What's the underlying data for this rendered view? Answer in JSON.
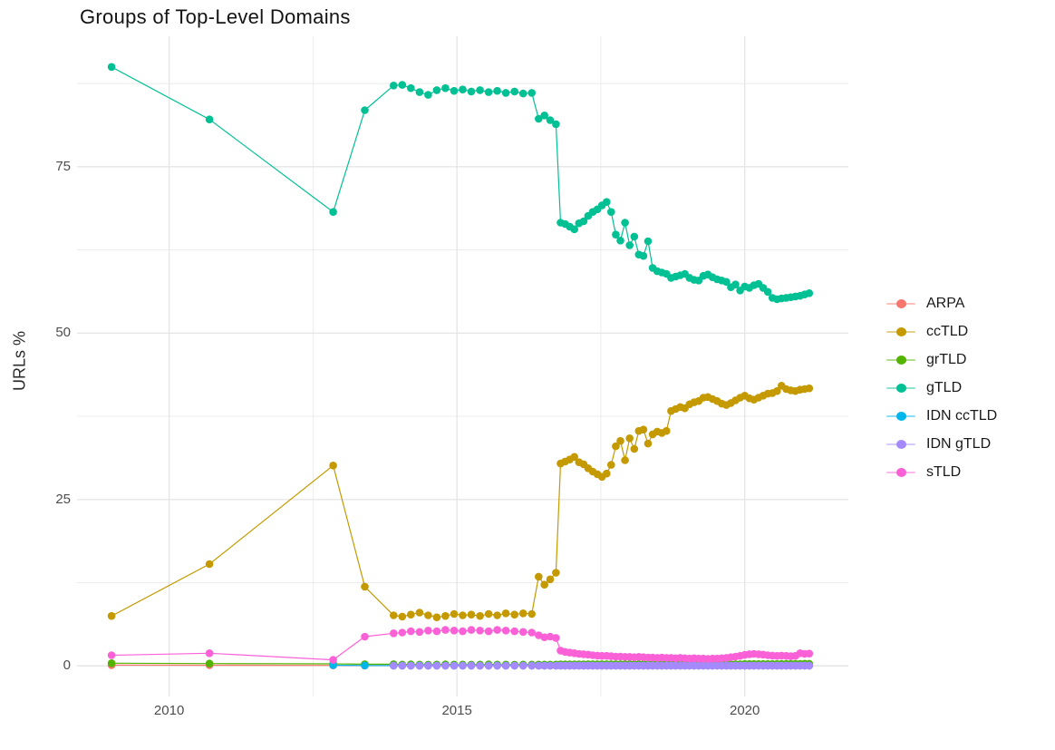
{
  "chart_data": {
    "type": "line",
    "title": "Groups of Top-Level Domains",
    "xlabel": "",
    "ylabel": "URLs %",
    "legend_position": "right",
    "grid": "major+minor",
    "x_unit": "year (decimal)",
    "x_range": [
      2008.4,
      2021.8
    ],
    "y_range": [
      -4.6,
      94.6
    ],
    "x_ticks": {
      "labels": [
        "2010",
        "2015",
        "2020"
      ],
      "values": [
        2010,
        2015,
        2020
      ],
      "minor": [
        2012.5,
        2017.5
      ]
    },
    "y_ticks": {
      "labels": [
        "0",
        "25",
        "50",
        "75"
      ],
      "values": [
        0,
        25,
        50,
        75
      ],
      "minor": [
        12.5,
        37.5,
        62.5,
        87.5
      ]
    },
    "x": [
      2009.0,
      2010.7,
      2012.85,
      2013.4,
      2013.9,
      2014.05,
      2014.2,
      2014.35,
      2014.5,
      2014.65,
      2014.8,
      2014.95,
      2015.1,
      2015.25,
      2015.4,
      2015.55,
      2015.7,
      2015.85,
      2016.0,
      2016.15,
      2016.3,
      2016.42,
      2016.52,
      2016.62,
      2016.72,
      2016.8,
      2016.88,
      2016.96,
      2017.04,
      2017.12,
      2017.2,
      2017.28,
      2017.36,
      2017.44,
      2017.52,
      2017.6,
      2017.68,
      2017.76,
      2017.84,
      2017.92,
      2018.0,
      2018.08,
      2018.16,
      2018.24,
      2018.32,
      2018.4,
      2018.48,
      2018.56,
      2018.64,
      2018.72,
      2018.8,
      2018.88,
      2018.96,
      2019.04,
      2019.12,
      2019.2,
      2019.28,
      2019.36,
      2019.44,
      2019.52,
      2019.6,
      2019.68,
      2019.76,
      2019.84,
      2019.92,
      2020.0,
      2020.08,
      2020.16,
      2020.24,
      2020.32,
      2020.4,
      2020.48,
      2020.56,
      2020.64,
      2020.72,
      2020.8,
      2020.88,
      2020.96,
      2021.04,
      2021.12
    ],
    "series": [
      {
        "name": "ARPA",
        "color": "#F8766D",
        "values": [
          0.12,
          0.1,
          0.08,
          0.05,
          0.05,
          0.04,
          0.04,
          0.04,
          0.04,
          0.04,
          0.04,
          0.04,
          0.04,
          0.04,
          0.04,
          0.04,
          0.04,
          0.04,
          0.04,
          0.04,
          0.04,
          0.03,
          0.03,
          0.03,
          0.03,
          0.03,
          0.03,
          0.03,
          0.03,
          0.03,
          0.03,
          0.03,
          0.03,
          0.03,
          0.03,
          0.03,
          0.03,
          0.03,
          0.03,
          0.03,
          0.03,
          0.03,
          0.03,
          0.03,
          0.03,
          0.03,
          0.03,
          0.03,
          0.03,
          0.03,
          0.03,
          0.03,
          0.03,
          0.03,
          0.03,
          0.03,
          0.03,
          0.03,
          0.03,
          0.03,
          0.03,
          0.03,
          0.03,
          0.03,
          0.03,
          0.03,
          0.03,
          0.03,
          0.03,
          0.03,
          0.03,
          0.03,
          0.03,
          0.03,
          0.03,
          0.03,
          0.03,
          0.03,
          0.03,
          0.03
        ]
      },
      {
        "name": "ccTLD",
        "color": "#C49A00",
        "values": [
          7.5,
          15.3,
          30.1,
          11.9,
          7.6,
          7.4,
          7.7,
          8.0,
          7.6,
          7.3,
          7.5,
          7.8,
          7.6,
          7.7,
          7.5,
          7.8,
          7.6,
          7.9,
          7.7,
          7.9,
          7.8,
          13.4,
          12.2,
          13.0,
          14.0,
          30.4,
          30.7,
          31.0,
          31.4,
          30.6,
          30.3,
          29.7,
          29.2,
          28.8,
          28.4,
          28.9,
          30.2,
          33.0,
          33.8,
          30.9,
          34.2,
          32.6,
          35.3,
          35.5,
          33.4,
          34.8,
          35.2,
          35.0,
          35.3,
          38.3,
          38.6,
          38.9,
          38.7,
          39.3,
          39.6,
          39.8,
          40.3,
          40.4,
          40.1,
          39.8,
          39.4,
          39.2,
          39.5,
          39.9,
          40.3,
          40.6,
          40.2,
          40.0,
          40.3,
          40.6,
          40.9,
          41.0,
          41.3,
          42.1,
          41.6,
          41.4,
          41.3,
          41.5,
          41.6,
          41.7
        ]
      },
      {
        "name": "grTLD",
        "color": "#53B400",
        "values": [
          0.4,
          0.35,
          0.3,
          0.25,
          0.25,
          0.2,
          0.22,
          0.2,
          0.18,
          0.2,
          0.22,
          0.2,
          0.2,
          0.18,
          0.2,
          0.22,
          0.2,
          0.2,
          0.18,
          0.2,
          0.2,
          0.2,
          0.2,
          0.2,
          0.2,
          0.22,
          0.22,
          0.23,
          0.23,
          0.24,
          0.24,
          0.25,
          0.25,
          0.25,
          0.25,
          0.25,
          0.25,
          0.25,
          0.25,
          0.25,
          0.25,
          0.25,
          0.25,
          0.25,
          0.25,
          0.25,
          0.25,
          0.25,
          0.25,
          0.25,
          0.25,
          0.25,
          0.25,
          0.25,
          0.25,
          0.25,
          0.25,
          0.25,
          0.25,
          0.25,
          0.25,
          0.25,
          0.25,
          0.25,
          0.25,
          0.28,
          0.28,
          0.28,
          0.28,
          0.28,
          0.28,
          0.28,
          0.28,
          0.3,
          0.3,
          0.3,
          0.3,
          0.3,
          0.32,
          0.32
        ]
      },
      {
        "name": "gTLD",
        "color": "#00C094",
        "values": [
          90.0,
          82.1,
          68.2,
          83.5,
          87.2,
          87.3,
          86.8,
          86.2,
          85.8,
          86.5,
          86.8,
          86.4,
          86.6,
          86.3,
          86.5,
          86.2,
          86.4,
          86.1,
          86.3,
          86.0,
          86.1,
          82.2,
          82.7,
          82.0,
          81.4,
          66.6,
          66.4,
          66.0,
          65.6,
          66.5,
          66.8,
          67.6,
          68.2,
          68.6,
          69.2,
          69.7,
          68.2,
          64.8,
          63.9,
          66.6,
          63.2,
          64.5,
          61.8,
          61.6,
          63.8,
          59.8,
          59.3,
          59.1,
          58.9,
          58.3,
          58.5,
          58.7,
          58.9,
          58.3,
          58.0,
          57.9,
          58.6,
          58.8,
          58.4,
          58.1,
          57.9,
          57.7,
          56.9,
          57.3,
          56.4,
          57.0,
          56.8,
          57.2,
          57.4,
          56.8,
          56.2,
          55.3,
          55.1,
          55.2,
          55.3,
          55.4,
          55.5,
          55.6,
          55.8,
          56.0
        ]
      },
      {
        "name": "IDN ccTLD",
        "color": "#00B6EB",
        "values": [
          null,
          null,
          0.1,
          0.06,
          0.05,
          0.05,
          0.05,
          0.05,
          0.05,
          0.05,
          0.05,
          0.05,
          0.05,
          0.05,
          0.05,
          0.05,
          0.05,
          0.05,
          0.05,
          0.05,
          0.05,
          0.05,
          0.05,
          0.05,
          0.05,
          0.05,
          0.05,
          0.05,
          0.05,
          0.05,
          0.05,
          0.05,
          0.05,
          0.05,
          0.05,
          0.05,
          0.05,
          0.05,
          0.05,
          0.05,
          0.05,
          0.05,
          0.05,
          0.05,
          0.05,
          0.05,
          0.05,
          0.05,
          0.05,
          0.05,
          0.05,
          0.05,
          0.05,
          0.05,
          0.05,
          0.05,
          0.05,
          0.05,
          0.05,
          0.05,
          0.05,
          0.05,
          0.05,
          0.05,
          0.05,
          0.05,
          0.05,
          0.05,
          0.05,
          0.05,
          0.05,
          0.05,
          0.05,
          0.05,
          0.05,
          0.05,
          0.05,
          0.05,
          0.05,
          0.05
        ]
      },
      {
        "name": "IDN gTLD",
        "color": "#A58AFF",
        "values": [
          null,
          null,
          null,
          null,
          0.03,
          0.03,
          0.03,
          0.03,
          0.03,
          0.03,
          0.03,
          0.03,
          0.03,
          0.03,
          0.03,
          0.03,
          0.03,
          0.03,
          0.03,
          0.03,
          0.03,
          0.03,
          0.03,
          0.03,
          0.03,
          0.04,
          0.04,
          0.04,
          0.04,
          0.04,
          0.04,
          0.04,
          0.04,
          0.04,
          0.04,
          0.04,
          0.04,
          0.04,
          0.04,
          0.04,
          0.04,
          0.04,
          0.04,
          0.04,
          0.04,
          0.04,
          0.04,
          0.04,
          0.04,
          0.04,
          0.04,
          0.04,
          0.04,
          0.04,
          0.04,
          0.04,
          0.04,
          0.04,
          0.04,
          0.04,
          0.04,
          0.04,
          0.04,
          0.04,
          0.04,
          0.04,
          0.04,
          0.04,
          0.04,
          0.04,
          0.04,
          0.04,
          0.04,
          0.04,
          0.04,
          0.04,
          0.04,
          0.04,
          0.04,
          0.04
        ]
      },
      {
        "name": "sTLD",
        "color": "#FB61D7",
        "values": [
          1.6,
          1.9,
          0.9,
          4.4,
          4.9,
          5.0,
          5.2,
          5.1,
          5.3,
          5.2,
          5.4,
          5.3,
          5.2,
          5.4,
          5.3,
          5.2,
          5.4,
          5.3,
          5.2,
          5.1,
          5.0,
          4.6,
          4.3,
          4.4,
          4.2,
          2.3,
          2.1,
          2.0,
          1.9,
          1.8,
          1.75,
          1.7,
          1.6,
          1.55,
          1.5,
          1.5,
          1.45,
          1.4,
          1.4,
          1.35,
          1.35,
          1.3,
          1.35,
          1.3,
          1.25,
          1.25,
          1.2,
          1.25,
          1.2,
          1.2,
          1.15,
          1.2,
          1.15,
          1.1,
          1.15,
          1.1,
          1.1,
          1.05,
          1.1,
          1.1,
          1.15,
          1.2,
          1.3,
          1.4,
          1.5,
          1.65,
          1.75,
          1.8,
          1.75,
          1.7,
          1.6,
          1.55,
          1.5,
          1.55,
          1.5,
          1.45,
          1.5,
          1.9,
          1.8,
          1.85
        ]
      }
    ]
  }
}
